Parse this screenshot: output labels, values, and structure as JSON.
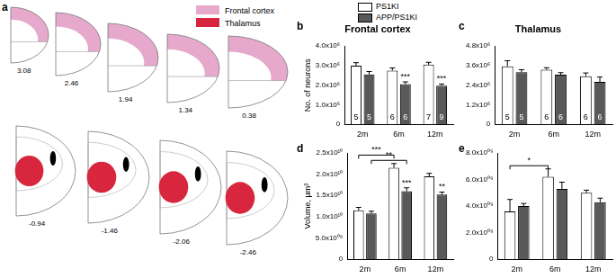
{
  "atlas": {
    "panel": "a",
    "legend": [
      {
        "name": "Frontal cortex",
        "color": "#e6a9cc"
      },
      {
        "name": "Thalamus",
        "color": "#d7263d"
      }
    ],
    "sections": [
      {
        "label": "3.08",
        "region": "Frontal cortex"
      },
      {
        "label": "2.46",
        "region": "Frontal cortex"
      },
      {
        "label": "1.94",
        "region": "Frontal cortex"
      },
      {
        "label": "1.34",
        "region": "Frontal cortex"
      },
      {
        "label": "0.38",
        "region": "Frontal cortex"
      },
      {
        "label": "-0.94",
        "region": "Thalamus"
      },
      {
        "label": "-1.46",
        "region": "Thalamus"
      },
      {
        "label": "-2.06",
        "region": "Thalamus"
      },
      {
        "label": "-2.46",
        "region": "Thalamus"
      }
    ]
  },
  "chart_data": [
    {
      "panel": "b",
      "type": "bar",
      "title": "Frontal cortex",
      "y_label": "No. of neurons",
      "categories": [
        "2m",
        "6m",
        "12m"
      ],
      "ylim": [
        0,
        4000000
      ],
      "yticks": [
        0,
        {
          "value": 1000000,
          "label": "1.0x10⁶"
        },
        {
          "value": 2000000,
          "label": "2.0x10⁶"
        },
        {
          "value": 3000000,
          "label": "3.0x10⁶"
        },
        {
          "value": 4000000,
          "label": "4.0x10⁶"
        }
      ],
      "grid": false,
      "series": [
        {
          "name": "PS1KI",
          "color": "#ffffff",
          "values": [
            3000000,
            2750000,
            3050000
          ],
          "errors": [
            150000,
            130000,
            120000
          ],
          "n": [
            5,
            6,
            7
          ]
        },
        {
          "name": "APP/PS1KI",
          "color": "#595959",
          "values": [
            2550000,
            2050000,
            1980000
          ],
          "errors": [
            150000,
            120000,
            80000
          ],
          "n": [
            5,
            6,
            9
          ]
        }
      ],
      "annotations": [
        {
          "category": "6m",
          "series": "APP/PS1KI",
          "text": "***"
        },
        {
          "category": "12m",
          "series": "APP/PS1KI",
          "text": "***"
        }
      ],
      "brackets": []
    },
    {
      "panel": "c",
      "type": "bar",
      "title": "Thalamus",
      "categories": [
        "2m",
        "6m",
        "12m"
      ],
      "ylim": [
        0,
        4800000
      ],
      "yticks": [
        0,
        {
          "value": 1200000,
          "label": "1.2x10⁶"
        },
        {
          "value": 2400000,
          "label": "2.4x10⁶"
        },
        {
          "value": 3600000,
          "label": "3.6x10⁶"
        },
        {
          "value": 4800000,
          "label": "4.8x10⁶"
        }
      ],
      "grid": false,
      "series": [
        {
          "name": "PS1KI",
          "color": "#ffffff",
          "values": [
            3550000,
            3350000,
            2950000
          ],
          "errors": [
            350000,
            120000,
            200000
          ],
          "n": [
            5,
            6,
            6
          ]
        },
        {
          "name": "APP/PS1KI",
          "color": "#595959",
          "values": [
            3200000,
            3050000,
            2600000
          ],
          "errors": [
            150000,
            120000,
            300000
          ],
          "n": [
            5,
            6,
            6
          ]
        }
      ],
      "annotations": [],
      "brackets": []
    },
    {
      "panel": "d",
      "type": "bar",
      "y_label": "Volume, µm³",
      "categories": [
        "2m",
        "6m",
        "12m"
      ],
      "ylim": [
        0,
        25000000000
      ],
      "yticks": [
        0,
        {
          "value": 5000000000,
          "label": "5.0x10⁰⁹"
        },
        {
          "value": 10000000000,
          "label": "1.0x10¹⁰"
        },
        {
          "value": 15000000000,
          "label": "1.5x10¹⁰"
        },
        {
          "value": 20000000000,
          "label": "2.0x10¹⁰"
        },
        {
          "value": 25000000000,
          "label": "2.5x10¹⁰"
        }
      ],
      "grid": false,
      "series": [
        {
          "name": "PS1KI",
          "color": "#ffffff",
          "values": [
            11500000000,
            21500000000,
            19500000000
          ],
          "errors": [
            700000000,
            1000000000,
            700000000
          ]
        },
        {
          "name": "APP/PS1KI",
          "color": "#595959",
          "values": [
            10800000000,
            16000000000,
            15200000000
          ],
          "errors": [
            500000000,
            800000000,
            600000000
          ]
        }
      ],
      "annotations": [
        {
          "category": "6m",
          "series": "APP/PS1KI",
          "text": "***"
        },
        {
          "category": "12m",
          "series": "APP/PS1KI",
          "text": "**"
        }
      ],
      "brackets": [
        {
          "from": "2m",
          "to": "6m",
          "series": "PS1KI",
          "text": "***"
        },
        {
          "from": "2m",
          "to": "6m",
          "series": "APP/PS1KI",
          "text": "**"
        }
      ]
    },
    {
      "panel": "e",
      "type": "bar",
      "categories": [
        "2m",
        "6m",
        "12m"
      ],
      "ylim": [
        0,
        8000000000
      ],
      "yticks": [
        0,
        {
          "value": 2000000000,
          "label": "2.0x10⁰⁹"
        },
        {
          "value": 4000000000,
          "label": "4.0x10⁰⁹"
        },
        {
          "value": 6000000000,
          "label": "6.0x10⁰⁹"
        },
        {
          "value": 8000000000,
          "label": "8.0x10⁰⁹"
        }
      ],
      "grid": false,
      "series": [
        {
          "name": "PS1KI",
          "color": "#ffffff",
          "values": [
            3600000000,
            6200000000,
            5000000000
          ],
          "errors": [
            900000000,
            600000000,
            200000000
          ]
        },
        {
          "name": "APP/PS1KI",
          "color": "#595959",
          "values": [
            4000000000,
            5300000000,
            4300000000
          ],
          "errors": [
            200000000,
            500000000,
            300000000
          ]
        }
      ],
      "annotations": [],
      "brackets": [
        {
          "from": "2m",
          "to": "6m",
          "series": "PS1KI",
          "text": "*"
        }
      ]
    }
  ]
}
